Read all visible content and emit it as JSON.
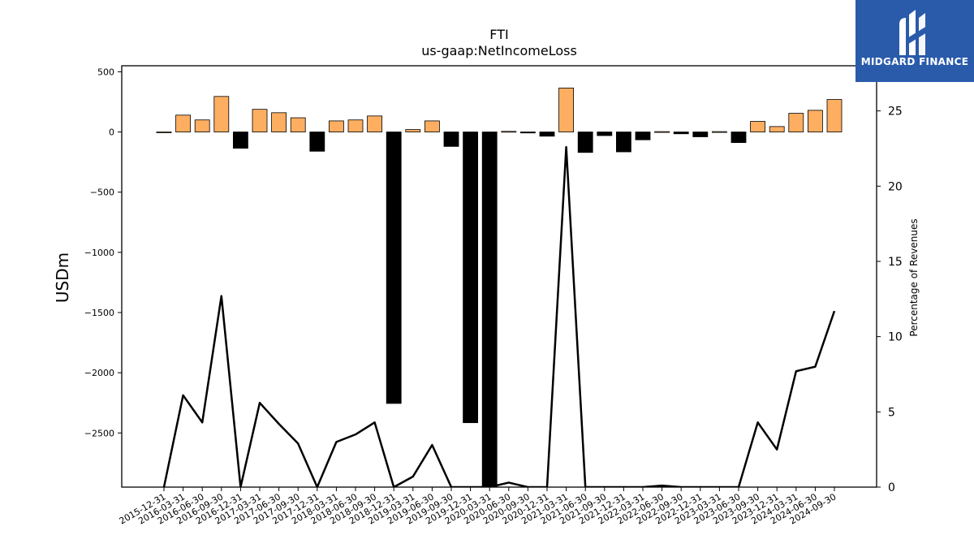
{
  "chart_data": {
    "type": "bar",
    "title": "FTI",
    "subtitle": "us-gaap:NetIncomeLoss",
    "ylabel": "USDm",
    "y2label": "Percentage of Revenues",
    "ylim": [
      -2950,
      550
    ],
    "y2lim": [
      0,
      28
    ],
    "yticks": [
      500,
      0,
      -500,
      -1000,
      -1500,
      -2000,
      -2500
    ],
    "ytick_labels": [
      "500",
      "0",
      "−500",
      "−1000",
      "−1500",
      "−2000",
      "−2500"
    ],
    "y2ticks": [
      0,
      5,
      10,
      15,
      20,
      25
    ],
    "y2tick_labels": [
      "0",
      "5",
      "10",
      "15",
      "20",
      "25"
    ],
    "grid": false,
    "colors": {
      "positive": "#fdae61",
      "negative": "#000000",
      "line": "#000000"
    },
    "categories": [
      "2015-12-31",
      "2016-03-31",
      "2016-06-30",
      "2016-09-30",
      "2016-12-31",
      "2017-03-31",
      "2017-06-30",
      "2017-09-30",
      "2017-12-31",
      "2018-03-31",
      "2018-06-30",
      "2018-09-30",
      "2018-12-31",
      "2019-03-31",
      "2019-06-30",
      "2019-09-30",
      "2019-12-31",
      "2020-03-31",
      "2020-06-30",
      "2020-09-30",
      "2020-12-31",
      "2021-03-31",
      "2021-06-30",
      "2021-09-30",
      "2021-12-31",
      "2022-03-31",
      "2022-06-30",
      "2022-09-30",
      "2022-12-31",
      "2023-03-31",
      "2023-06-30",
      "2023-09-30",
      "2023-12-31",
      "2024-03-31",
      "2024-06-30",
      "2024-09-30"
    ],
    "series": [
      {
        "type": "bar",
        "values": [
          0,
          140,
          100,
          295,
          -135,
          188,
          160,
          118,
          -160,
          92,
          100,
          133,
          -2255,
          20,
          92,
          -120,
          -2415,
          -2960,
          5,
          -8,
          -35,
          365,
          -170,
          -30,
          -165,
          -65,
          3,
          -15,
          -40,
          3,
          -88,
          88,
          45,
          155,
          180,
          270
        ]
      },
      {
        "type": "line",
        "axis": "right",
        "values": [
          0,
          6.1,
          4.3,
          12.7,
          0,
          5.6,
          4.2,
          2.9,
          0,
          3.0,
          3.5,
          4.3,
          0,
          0.7,
          2.8,
          0,
          0,
          0,
          0.3,
          0,
          0,
          22.6,
          0,
          0,
          0,
          0,
          0.1,
          0,
          0,
          0,
          0,
          4.3,
          2.5,
          7.7,
          8.0,
          11.7
        ]
      }
    ]
  },
  "logo": {
    "name": "midgard-finance-logo",
    "text": "MIDGARD FINANCE"
  }
}
